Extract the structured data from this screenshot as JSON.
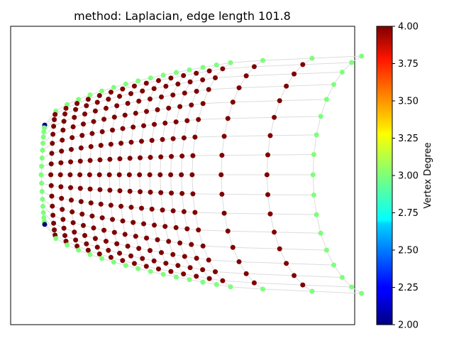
{
  "chart_data": {
    "type": "scatter",
    "title": "method: Laplacian, edge length 101.8",
    "xlabel": "",
    "ylabel": "",
    "axes_visible_ticks": false,
    "grid": false,
    "description_of_structure": "",
    "colorbar": {
      "label": "Vertex Degree",
      "colormap": "jet",
      "min": 2.0,
      "max": 4.0,
      "ticks": [
        "2.00",
        "2.25",
        "2.50",
        "2.75",
        "3.00",
        "3.25",
        "3.50",
        "3.75",
        "4.00"
      ],
      "tick_values": [
        2.0,
        2.25,
        2.5,
        2.75,
        3.0,
        3.25,
        3.5,
        3.75,
        4.0
      ]
    },
    "mesh": {
      "rings": 19,
      "spokes": 17,
      "degree_colors": {
        "2": "#00007f",
        "3": "#7dff7a",
        "4": "#7f0000"
      },
      "edge_color": "#dcdcdc",
      "corner_degree": 2,
      "boundary_degree": 3,
      "interior_degree": 4
    },
    "points_summary": {
      "degree_2_count": 2,
      "degree_3_count": 68,
      "degree_4_count": 253
    }
  }
}
